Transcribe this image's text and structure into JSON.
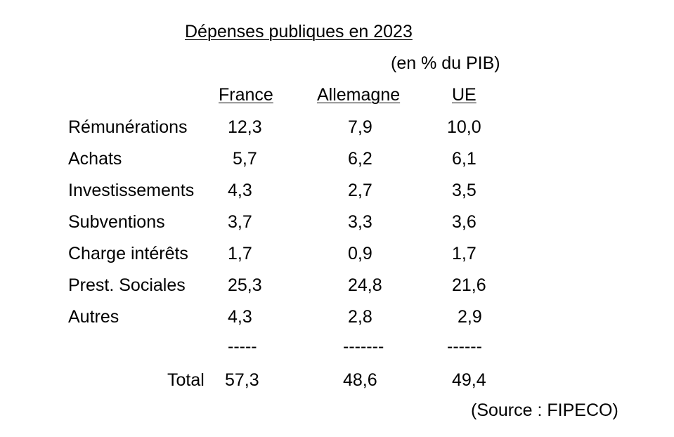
{
  "title": "Dépenses publiques en 2023",
  "unit": "(en % du PIB)",
  "columns": [
    "France",
    "Allemagne",
    "UE"
  ],
  "rows": [
    {
      "label": "Rémunérations",
      "values": [
        "12,3",
        "7,9",
        "10,0"
      ]
    },
    {
      "label": "Achats",
      "values": [
        "5,7",
        "6,2",
        "6,1"
      ]
    },
    {
      "label": "Investissements",
      "values": [
        "4,3",
        "2,7",
        "3,5"
      ]
    },
    {
      "label": "Subventions",
      "values": [
        "3,7",
        "3,3",
        "3,6"
      ]
    },
    {
      "label": "Charge intérêts",
      "values": [
        "1,7",
        "0,9",
        "1,7"
      ]
    },
    {
      "label": "Prest. Sociales",
      "values": [
        "25,3",
        "24,8",
        "21,6"
      ]
    },
    {
      "label": "Autres",
      "values": [
        "4,3",
        "2,8",
        "2,9"
      ]
    }
  ],
  "separators": [
    "-----",
    "-------",
    "------"
  ],
  "total": {
    "label": "Total",
    "values": [
      "57,3",
      "48,6",
      "49,4"
    ]
  },
  "source": "(Source : FIPECO)"
}
